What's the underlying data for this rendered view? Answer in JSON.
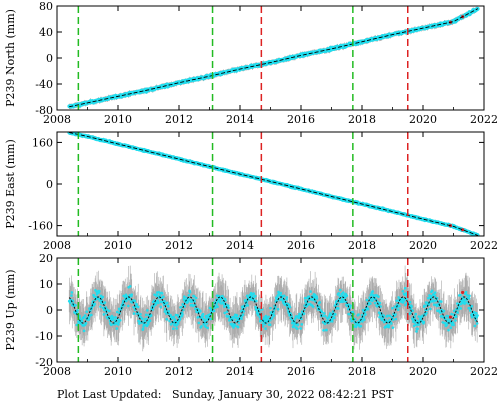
{
  "footer": {
    "label": "Plot Last Updated:",
    "date": "Sunday, January 30, 2022 08:42:21 PST"
  },
  "colors": {
    "data_points": "#22ddee",
    "error_bars": "#aaaaaa",
    "trend_fit": "#000000",
    "event_green": "#22bb22",
    "event_red": "#dd2222"
  },
  "chart_data": [
    {
      "type": "scatter",
      "ylabel": "P239 North (mm)",
      "xlim": [
        2008,
        2022
      ],
      "ylim": [
        -80,
        80
      ],
      "xticks": [
        "2008",
        "2010",
        "2012",
        "2014",
        "2016",
        "2018",
        "2020",
        "2022"
      ],
      "yticks": [
        "80",
        "40",
        "0",
        "-40",
        "-80"
      ],
      "grid": false,
      "series": [
        {
          "x": [
            2008.4,
            2009,
            2010,
            2011,
            2012,
            2013,
            2014,
            2015,
            2016,
            2017,
            2018,
            2019,
            2020,
            2021,
            2021.8
          ],
          "values": [
            -75,
            -69,
            -59,
            -49,
            -38,
            -28,
            -17,
            -7,
            4,
            14,
            25,
            36,
            46,
            56,
            76
          ]
        }
      ]
    },
    {
      "type": "scatter",
      "ylabel": "P239 East (mm)",
      "xlim": [
        2008,
        2022
      ],
      "ylim": [
        -200,
        200
      ],
      "xticks": [
        "2008",
        "2010",
        "2012",
        "2014",
        "2016",
        "2018",
        "2020",
        "2022"
      ],
      "yticks": [
        "160",
        "0",
        "-160"
      ],
      "grid": false,
      "series": [
        {
          "x": [
            2008.4,
            2009,
            2010,
            2011,
            2012,
            2013,
            2014,
            2015,
            2016,
            2017,
            2018,
            2019,
            2020,
            2021,
            2021.8
          ],
          "values": [
            198,
            183,
            154,
            125,
            96,
            67,
            38,
            10,
            -19,
            -48,
            -77,
            -106,
            -135,
            -163,
            -198
          ]
        }
      ]
    },
    {
      "type": "scatter",
      "ylabel": "P239 Up (mm)",
      "xlim": [
        2008,
        2022
      ],
      "ylim": [
        -20,
        20
      ],
      "xticks": [
        "2008",
        "2010",
        "2012",
        "2014",
        "2016",
        "2018",
        "2020",
        "2022"
      ],
      "yticks": [
        "20",
        "10",
        "0",
        "-10",
        "-20"
      ],
      "grid": false,
      "seasonal_amplitude_mm": 5,
      "period_years": 1,
      "series": [
        {
          "x": [
            2008.4,
            2009,
            2010,
            2011,
            2012,
            2013,
            2014,
            2015,
            2016,
            2017,
            2018,
            2019,
            2020,
            2021,
            2021.8
          ],
          "values": [
            4,
            -5,
            -4,
            -5,
            -4,
            -5,
            -4,
            -5,
            -4,
            -5,
            -4,
            -5,
            -4,
            -5,
            -4
          ]
        }
      ]
    }
  ],
  "events": {
    "green": [
      2008.7,
      2013.1,
      2017.7
    ],
    "red": [
      2014.7,
      2019.5
    ]
  }
}
